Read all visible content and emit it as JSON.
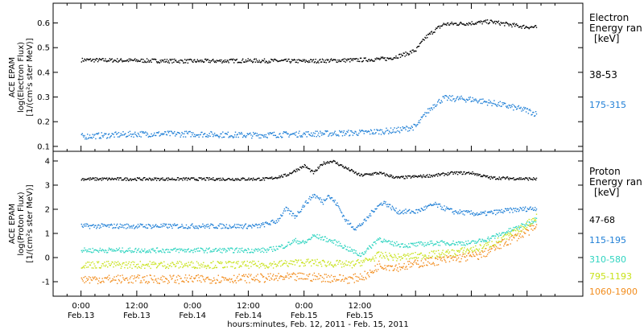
{
  "chart_data": [
    {
      "type": "scatter",
      "ylabel": [
        "ACE EPAM",
        "log(Electron Flux)",
        "[1/(cm²s ster MeV)]"
      ],
      "ylim": [
        0.08,
        0.68
      ],
      "yticks": [
        0.1,
        0.2,
        0.3,
        0.4,
        0.5,
        0.6
      ],
      "legend_title": [
        "Electron",
        "Energy ran",
        "[keV]"
      ],
      "series": [
        {
          "name": "38-53",
          "color": "#000000",
          "noise": 0.008,
          "points": [
            [
              0,
              0.45
            ],
            [
              24,
              0.445
            ],
            [
              36,
              0.447
            ],
            [
              48,
              0.445
            ],
            [
              60,
              0.45
            ],
            [
              66,
              0.455
            ],
            [
              70,
              0.475
            ],
            [
              72,
              0.49
            ],
            [
              74,
              0.54
            ],
            [
              76,
              0.57
            ],
            [
              78,
              0.595
            ],
            [
              83,
              0.598
            ],
            [
              88,
              0.605
            ],
            [
              95,
              0.585
            ],
            [
              98,
              0.582
            ]
          ]
        },
        {
          "name": "175-315",
          "color": "#1f7fd6",
          "noise": 0.012,
          "points": [
            [
              0,
              0.14
            ],
            [
              12,
              0.15
            ],
            [
              24,
              0.15
            ],
            [
              36,
              0.145
            ],
            [
              48,
              0.15
            ],
            [
              60,
              0.155
            ],
            [
              68,
              0.165
            ],
            [
              72,
              0.18
            ],
            [
              74,
              0.23
            ],
            [
              76,
              0.27
            ],
            [
              78,
              0.295
            ],
            [
              84,
              0.29
            ],
            [
              90,
              0.27
            ],
            [
              96,
              0.245
            ],
            [
              98,
              0.23
            ]
          ]
        }
      ]
    },
    {
      "type": "scatter",
      "ylabel": [
        "ACE EPAM",
        "log(Proton Flux)",
        "[1/(cm²s ster MeV)]"
      ],
      "ylim": [
        -1.6,
        4.4
      ],
      "yticks": [
        -1,
        0,
        1,
        2,
        3,
        4
      ],
      "legend_title": [
        "Proton",
        "Energy ran",
        "[keV]"
      ],
      "series": [
        {
          "name": "47-68",
          "color": "#000000",
          "noise": 0.06,
          "points": [
            [
              0,
              3.25
            ],
            [
              24,
              3.25
            ],
            [
              40,
              3.25
            ],
            [
              44,
              3.4
            ],
            [
              46,
              3.6
            ],
            [
              48,
              3.8
            ],
            [
              50,
              3.5
            ],
            [
              52,
              3.9
            ],
            [
              54,
              4.0
            ],
            [
              56,
              3.8
            ],
            [
              58,
              3.6
            ],
            [
              60,
              3.4
            ],
            [
              64,
              3.5
            ],
            [
              68,
              3.3
            ],
            [
              72,
              3.35
            ],
            [
              76,
              3.4
            ],
            [
              80,
              3.5
            ],
            [
              84,
              3.5
            ],
            [
              88,
              3.3
            ],
            [
              98,
              3.25
            ]
          ]
        },
        {
          "name": "115-195",
          "color": "#1f7fd6",
          "noise": 0.1,
          "points": [
            [
              0,
              1.3
            ],
            [
              24,
              1.3
            ],
            [
              38,
              1.3
            ],
            [
              42,
              1.5
            ],
            [
              44,
              2.0
            ],
            [
              46,
              1.7
            ],
            [
              48,
              2.2
            ],
            [
              50,
              2.6
            ],
            [
              52,
              2.3
            ],
            [
              53,
              2.6
            ],
            [
              55,
              2.2
            ],
            [
              57,
              1.5
            ],
            [
              59,
              1.2
            ],
            [
              61,
              1.5
            ],
            [
              63,
              2.0
            ],
            [
              65,
              2.3
            ],
            [
              68,
              1.9
            ],
            [
              72,
              1.9
            ],
            [
              76,
              2.2
            ],
            [
              80,
              1.9
            ],
            [
              86,
              1.8
            ],
            [
              92,
              1.95
            ],
            [
              98,
              2.05
            ]
          ]
        },
        {
          "name": "310-580",
          "color": "#2fd4c0",
          "noise": 0.1,
          "points": [
            [
              0,
              0.3
            ],
            [
              24,
              0.3
            ],
            [
              40,
              0.3
            ],
            [
              44,
              0.5
            ],
            [
              46,
              0.7
            ],
            [
              48,
              0.6
            ],
            [
              50,
              0.9
            ],
            [
              52,
              0.8
            ],
            [
              55,
              0.6
            ],
            [
              58,
              0.3
            ],
            [
              60,
              0.1
            ],
            [
              62,
              0.4
            ],
            [
              64,
              0.8
            ],
            [
              66,
              0.6
            ],
            [
              70,
              0.5
            ],
            [
              76,
              0.6
            ],
            [
              84,
              0.6
            ],
            [
              88,
              0.8
            ],
            [
              92,
              1.1
            ],
            [
              96,
              1.4
            ],
            [
              98,
              1.6
            ]
          ]
        },
        {
          "name": "795-1193",
          "color": "#c8e21a",
          "noise": 0.15,
          "points": [
            [
              0,
              -0.3
            ],
            [
              24,
              -0.3
            ],
            [
              40,
              -0.3
            ],
            [
              48,
              -0.2
            ],
            [
              54,
              -0.25
            ],
            [
              58,
              -0.3
            ],
            [
              62,
              -0.1
            ],
            [
              64,
              0.1
            ],
            [
              68,
              0.0
            ],
            [
              74,
              0.1
            ],
            [
              80,
              0.2
            ],
            [
              86,
              0.4
            ],
            [
              90,
              0.7
            ],
            [
              94,
              1.1
            ],
            [
              98,
              1.7
            ]
          ]
        },
        {
          "name": "1060-1900",
          "color": "#f28c1c",
          "noise": 0.18,
          "points": [
            [
              0,
              -0.9
            ],
            [
              24,
              -0.9
            ],
            [
              40,
              -0.85
            ],
            [
              48,
              -0.8
            ],
            [
              54,
              -0.85
            ],
            [
              58,
              -0.9
            ],
            [
              62,
              -0.7
            ],
            [
              64,
              -0.3
            ],
            [
              68,
              -0.4
            ],
            [
              74,
              -0.2
            ],
            [
              80,
              -0.05
            ],
            [
              86,
              0.1
            ],
            [
              90,
              0.5
            ],
            [
              94,
              0.9
            ],
            [
              98,
              1.25
            ]
          ]
        }
      ]
    }
  ],
  "x_axis": {
    "range_hours": [
      -6,
      108
    ],
    "ticks": [
      {
        "hour": 0,
        "time": "0:00",
        "date": "Feb.13"
      },
      {
        "hour": 12,
        "time": "12:00",
        "date": "Feb.13"
      },
      {
        "hour": 24,
        "time": "0:00",
        "date": "Feb.14"
      },
      {
        "hour": 36,
        "time": "12:00",
        "date": "Feb.14"
      },
      {
        "hour": 48,
        "time": "0:00",
        "date": "Feb.15"
      },
      {
        "hour": 60,
        "time": "12:00",
        "date": "Feb.15"
      }
    ],
    "label": "hours:minutes, Feb. 12, 2011 - Feb. 15, 2011"
  }
}
